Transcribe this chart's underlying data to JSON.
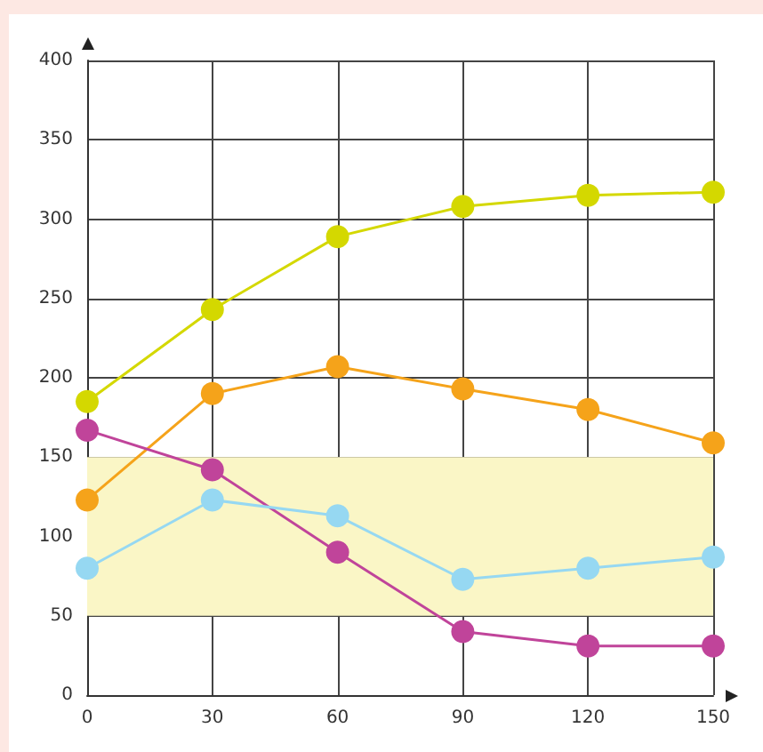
{
  "chart_data": {
    "type": "line",
    "x": [
      0,
      30,
      60,
      90,
      120,
      150
    ],
    "series": [
      {
        "color": "#d4d800",
        "values": [
          185,
          243,
          289,
          308,
          315,
          317
        ]
      },
      {
        "color": "#f5a31a",
        "values": [
          123,
          190,
          207,
          193,
          180,
          159
        ]
      },
      {
        "color": "#c0449a",
        "values": [
          167,
          142,
          90,
          40,
          31,
          31
        ]
      },
      {
        "color": "#96d8f2",
        "values": [
          80,
          123,
          113,
          73,
          80,
          87
        ]
      }
    ],
    "xlim": [
      0,
      150
    ],
    "xticks": [
      0,
      30,
      60,
      90,
      120,
      150
    ],
    "ylim": [
      0,
      400
    ],
    "yticks": [
      0,
      50,
      100,
      150,
      200,
      250,
      300,
      350,
      400
    ],
    "bands": [
      {
        "axis": "y",
        "from": 50,
        "to": 150,
        "color": "#faf6c6"
      }
    ],
    "grid": true,
    "marker": "circle",
    "line_style": "solid"
  }
}
